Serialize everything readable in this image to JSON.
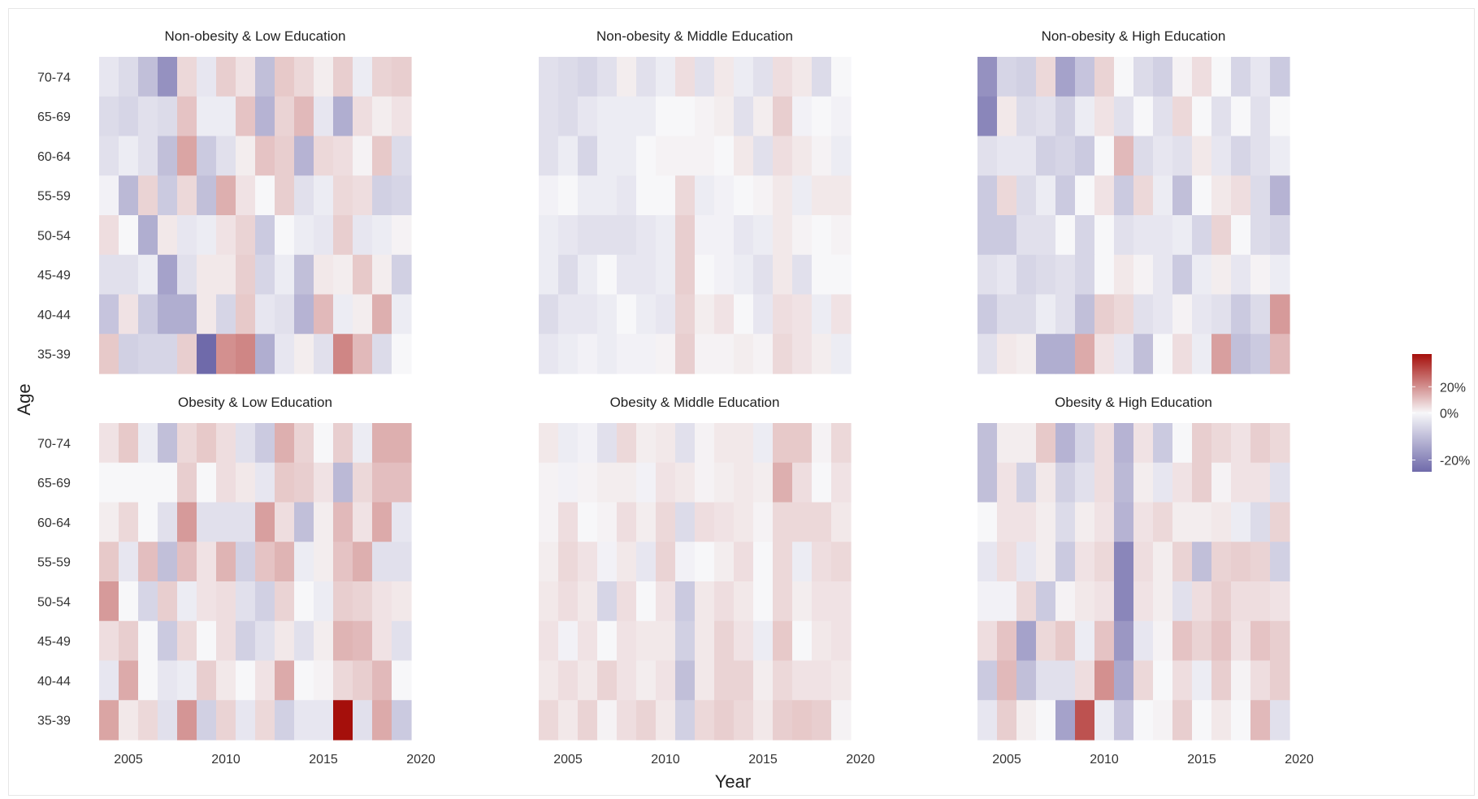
{
  "chart_data": {
    "type": "heatmap",
    "xlabel": "Year",
    "ylabel": "Age",
    "x_ticks": [
      2005,
      2010,
      2015,
      2020
    ],
    "xlim": [
      2003.5,
      2020
    ],
    "years": [
      2004,
      2005,
      2006,
      2007,
      2008,
      2009,
      2010,
      2011,
      2012,
      2013,
      2014,
      2015,
      2016,
      2017,
      2018,
      2019
    ],
    "age_groups": [
      "70-74",
      "65-69",
      "60-64",
      "55-59",
      "50-54",
      "45-49",
      "40-44",
      "35-39"
    ],
    "legend": {
      "ticks": [
        20,
        0,
        -20
      ],
      "tick_labels": [
        "20%",
        "0%",
        "-20%"
      ],
      "range": [
        -25,
        45
      ],
      "low_color": "#6f6aaa",
      "mid_color": "#f7f7f9",
      "high_color": "#a50f0b"
    },
    "value_units": "%",
    "panels": [
      {
        "title": "Non-obesity & Low Education",
        "values": [
          [
            -3,
            -5,
            -10,
            -18,
            6,
            -3,
            8,
            4,
            -10,
            9,
            6,
            2,
            8,
            -2,
            7,
            8
          ],
          [
            -5,
            -6,
            -4,
            -5,
            10,
            -2,
            -2,
            10,
            -12,
            7,
            12,
            -3,
            -13,
            5,
            2,
            4
          ],
          [
            -4,
            -2,
            -4,
            -10,
            16,
            -8,
            -4,
            2,
            10,
            8,
            -12,
            6,
            5,
            1,
            9,
            -5
          ],
          [
            -1,
            -11,
            7,
            -8,
            6,
            -10,
            14,
            4,
            0,
            8,
            -4,
            -2,
            6,
            5,
            -7,
            -6
          ],
          [
            5,
            0,
            -13,
            3,
            -3,
            -2,
            4,
            7,
            -8,
            0,
            -2,
            -3,
            8,
            -3,
            -2,
            1
          ],
          [
            -4,
            -4,
            -2,
            -15,
            -4,
            3,
            3,
            8,
            -6,
            -2,
            -10,
            3,
            2,
            9,
            2,
            -7
          ],
          [
            -9,
            4,
            -8,
            -13,
            -13,
            3,
            -6,
            9,
            -3,
            -4,
            -12,
            12,
            -2,
            2,
            14,
            -2
          ],
          [
            9,
            -7,
            -6,
            -6,
            8,
            -40,
            20,
            22,
            -13,
            -3,
            2,
            -4,
            22,
            12,
            -5,
            0
          ]
        ]
      },
      {
        "title": "Non-obesity & Middle Education",
        "values": [
          [
            -4,
            -5,
            -6,
            -4,
            2,
            -4,
            -2,
            5,
            -4,
            3,
            -2,
            -4,
            5,
            3,
            -5,
            0
          ],
          [
            -4,
            -5,
            -3,
            -2,
            -2,
            -2,
            0,
            0,
            1,
            2,
            -4,
            2,
            8,
            -1,
            0,
            -1
          ],
          [
            -4,
            -2,
            -6,
            -2,
            -2,
            0,
            1,
            1,
            1,
            0,
            3,
            -4,
            5,
            3,
            1,
            -2
          ],
          [
            -1,
            0,
            -2,
            -2,
            -3,
            0,
            0,
            6,
            -2,
            -1,
            0,
            1,
            3,
            -2,
            3,
            3
          ],
          [
            -2,
            -3,
            -4,
            -4,
            -4,
            -3,
            -2,
            8,
            -1,
            -1,
            -3,
            -2,
            3,
            1,
            0,
            1
          ],
          [
            -2,
            -5,
            -2,
            0,
            -3,
            -3,
            -2,
            8,
            0,
            -1,
            -2,
            -4,
            3,
            -4,
            0,
            0
          ],
          [
            -5,
            -3,
            -3,
            -2,
            0,
            -2,
            -3,
            7,
            2,
            4,
            0,
            -3,
            5,
            4,
            -2,
            4
          ],
          [
            -3,
            -2,
            -1,
            -2,
            -1,
            -1,
            1,
            8,
            1,
            1,
            2,
            1,
            6,
            4,
            2,
            -2
          ]
        ]
      },
      {
        "title": "Non-obesity & High Education",
        "values": [
          [
            -18,
            -6,
            -7,
            6,
            -15,
            -9,
            7,
            0,
            -5,
            -7,
            1,
            5,
            0,
            -6,
            -3,
            -8
          ],
          [
            -20,
            3,
            -5,
            -4,
            -7,
            -2,
            4,
            -4,
            0,
            -4,
            6,
            0,
            -4,
            0,
            -4,
            0
          ],
          [
            -4,
            -3,
            -3,
            -7,
            -6,
            -8,
            0,
            12,
            -5,
            -3,
            -4,
            3,
            -3,
            -6,
            -4,
            -2
          ],
          [
            -8,
            6,
            -5,
            -2,
            -8,
            0,
            4,
            -8,
            6,
            -2,
            -10,
            0,
            3,
            5,
            -5,
            -12
          ],
          [
            -8,
            -8,
            -4,
            -4,
            0,
            -6,
            0,
            -4,
            -3,
            -3,
            -2,
            -6,
            7,
            0,
            -5,
            -6
          ],
          [
            -4,
            -3,
            -6,
            -5,
            -4,
            -6,
            0,
            3,
            1,
            -3,
            -8,
            -2,
            2,
            -3,
            1,
            -2
          ],
          [
            -8,
            -5,
            -5,
            -2,
            -4,
            -10,
            8,
            6,
            -4,
            -3,
            1,
            -3,
            -4,
            -8,
            -5,
            18
          ],
          [
            -4,
            3,
            2,
            -13,
            -13,
            15,
            4,
            -3,
            -10,
            0,
            5,
            -2,
            17,
            -10,
            -8,
            12
          ]
        ]
      },
      {
        "title": "Obesity & Low Education",
        "values": [
          [
            4,
            9,
            -2,
            -10,
            6,
            9,
            5,
            -4,
            -8,
            14,
            7,
            0,
            8,
            -2,
            14,
            14
          ],
          [
            0,
            0,
            0,
            0,
            8,
            0,
            5,
            3,
            -3,
            9,
            8,
            4,
            -11,
            6,
            11,
            11
          ],
          [
            2,
            6,
            0,
            -4,
            18,
            -4,
            -4,
            -4,
            17,
            5,
            -10,
            2,
            12,
            4,
            15,
            -3
          ],
          [
            9,
            -3,
            11,
            -10,
            11,
            4,
            13,
            -7,
            10,
            13,
            -2,
            2,
            10,
            14,
            -4,
            -4
          ],
          [
            18,
            0,
            -6,
            8,
            -2,
            4,
            5,
            -4,
            -7,
            7,
            0,
            -2,
            8,
            7,
            4,
            3
          ],
          [
            5,
            8,
            0,
            -8,
            6,
            0,
            5,
            -7,
            -4,
            3,
            -4,
            2,
            13,
            12,
            4,
            -4
          ],
          [
            -3,
            15,
            0,
            -3,
            -2,
            8,
            3,
            0,
            4,
            15,
            0,
            1,
            6,
            8,
            12,
            0
          ],
          [
            16,
            3,
            6,
            -4,
            19,
            -7,
            7,
            -3,
            6,
            -7,
            -3,
            -3,
            45,
            -4,
            15,
            -8
          ]
        ]
      },
      {
        "title": "Obesity & Middle Education",
        "values": [
          [
            3,
            -2,
            -1,
            -4,
            6,
            2,
            3,
            -4,
            1,
            3,
            3,
            -2,
            9,
            9,
            1,
            6
          ],
          [
            1,
            -1,
            1,
            2,
            2,
            -1,
            4,
            3,
            1,
            2,
            3,
            2,
            14,
            5,
            0,
            4
          ],
          [
            1,
            5,
            0,
            1,
            5,
            2,
            6,
            -5,
            5,
            4,
            3,
            1,
            6,
            6,
            6,
            3
          ],
          [
            2,
            6,
            4,
            -1,
            3,
            -3,
            7,
            -1,
            0,
            2,
            5,
            0,
            6,
            -2,
            5,
            6
          ],
          [
            3,
            5,
            3,
            -6,
            5,
            0,
            4,
            -8,
            3,
            5,
            3,
            0,
            6,
            2,
            4,
            4
          ],
          [
            4,
            -1,
            4,
            0,
            4,
            3,
            3,
            -7,
            3,
            7,
            4,
            -2,
            9,
            0,
            3,
            4
          ],
          [
            3,
            5,
            3,
            7,
            4,
            2,
            4,
            -10,
            3,
            7,
            7,
            2,
            6,
            4,
            4,
            3
          ],
          [
            6,
            3,
            7,
            1,
            5,
            7,
            3,
            -7,
            6,
            8,
            6,
            3,
            8,
            9,
            8,
            1
          ]
        ]
      },
      {
        "title": "Obesity & High Education",
        "values": [
          [
            -10,
            2,
            2,
            9,
            -12,
            -6,
            5,
            -12,
            4,
            -8,
            0,
            8,
            6,
            4,
            8,
            6
          ],
          [
            -10,
            4,
            -7,
            3,
            -7,
            -4,
            5,
            -11,
            2,
            -3,
            4,
            8,
            1,
            4,
            4,
            -4
          ],
          [
            0,
            4,
            4,
            2,
            -5,
            2,
            4,
            -12,
            4,
            6,
            2,
            2,
            3,
            -2,
            -5,
            7
          ],
          [
            -3,
            5,
            -3,
            2,
            -8,
            4,
            6,
            -20,
            5,
            2,
            7,
            -10,
            7,
            8,
            7,
            -7
          ],
          [
            -1,
            -1,
            6,
            -8,
            1,
            3,
            4,
            -20,
            4,
            2,
            -4,
            5,
            8,
            5,
            5,
            4
          ],
          [
            5,
            10,
            -15,
            6,
            9,
            -2,
            10,
            -17,
            -3,
            1,
            10,
            7,
            10,
            4,
            10,
            8
          ],
          [
            -8,
            12,
            -10,
            -4,
            -4,
            5,
            20,
            -14,
            6,
            0,
            5,
            -2,
            8,
            1,
            5,
            8
          ],
          [
            -3,
            8,
            2,
            0,
            -15,
            32,
            -2,
            -9,
            0,
            1,
            8,
            0,
            3,
            0,
            12,
            -4
          ]
        ]
      }
    ]
  }
}
